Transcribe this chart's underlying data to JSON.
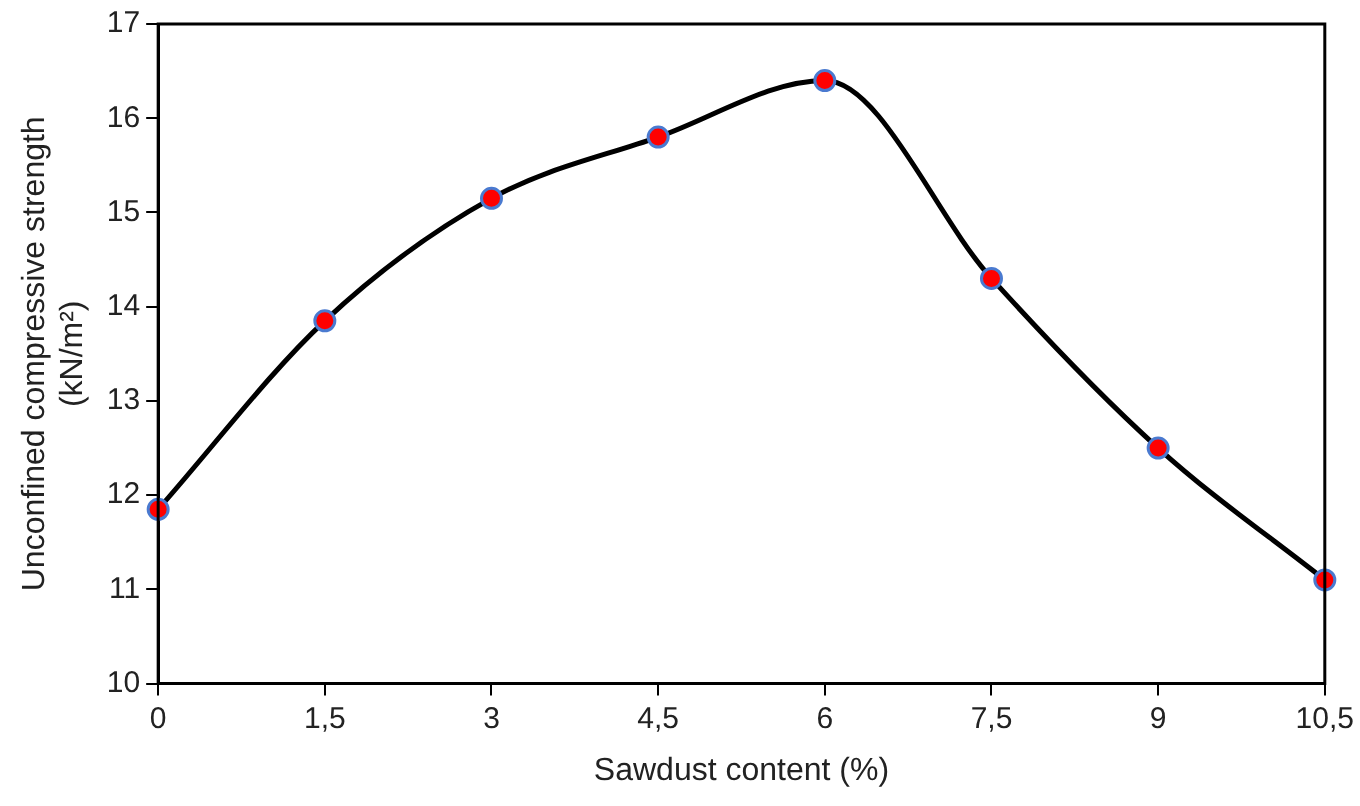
{
  "chart_data": {
    "type": "line",
    "xlabel": "Sawdust content (%)",
    "ylabel": "Unconfined compressive strength\n(kN/m²)",
    "categories": [
      "0",
      "1,5",
      "3",
      "4,5",
      "6",
      "7,5",
      "9",
      "10,5"
    ],
    "series": [
      {
        "color": "#000000",
        "colors": [
          "#ff0000",
          "#ff0000",
          "#ff0000",
          "#ff0000",
          "#ff0000",
          "#ff0000",
          "#ff0000",
          "#ff0000"
        ],
        "values": [
          11.85,
          13.85,
          15.15,
          15.8,
          16.4,
          14.3,
          12.5,
          11.1
        ]
      }
    ],
    "ylim": [
      10,
      17
    ],
    "yticks": [
      10,
      11,
      12,
      13,
      14,
      15,
      16,
      17
    ],
    "grid": false,
    "legend": false,
    "marker": "circle",
    "line_style": "solid"
  }
}
